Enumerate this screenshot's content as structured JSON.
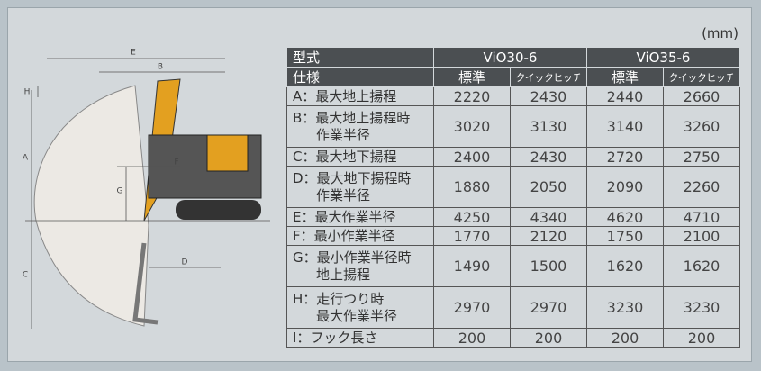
{
  "unit": "(mm)",
  "table": {
    "header": [
      [
        "型式",
        "ViO30-6",
        "ViO35-6"
      ],
      [
        "仕様",
        "標準",
        "クイックヒッチ",
        "標準",
        "クイックヒッチ"
      ]
    ],
    "rows": [
      {
        "label": [
          "A：最大地上揚程"
        ],
        "values": [
          2220,
          2430,
          2440,
          2660
        ]
      },
      {
        "label": [
          "B：最大地上揚程時",
          "作業半径"
        ],
        "values": [
          3020,
          3130,
          3140,
          3260
        ]
      },
      {
        "label": [
          "C：最大地下揚程"
        ],
        "values": [
          2400,
          2430,
          2720,
          2750
        ]
      },
      {
        "label": [
          "D：最大地下揚程時",
          "作業半径"
        ],
        "values": [
          1880,
          2050,
          2090,
          2260
        ]
      },
      {
        "label": [
          "E：最大作業半径"
        ],
        "values": [
          4250,
          4340,
          4620,
          4710
        ]
      },
      {
        "label": [
          "F：最小作業半径"
        ],
        "values": [
          1770,
          2120,
          1750,
          2100
        ]
      },
      {
        "label": [
          "G：最小作業半径時",
          "地上揚程"
        ],
        "values": [
          1490,
          1500,
          1620,
          1620
        ]
      },
      {
        "label": [
          "H：走行つり時",
          "最大作業半径"
        ],
        "values": [
          2970,
          2970,
          3230,
          3230
        ]
      },
      {
        "label": [
          "I：フック長さ"
        ],
        "values": [
          200,
          200,
          200,
          200
        ]
      }
    ]
  },
  "diagram": {
    "labels": [
      "E",
      "B",
      "H",
      "A",
      "F",
      "G",
      "C",
      "D"
    ]
  }
}
